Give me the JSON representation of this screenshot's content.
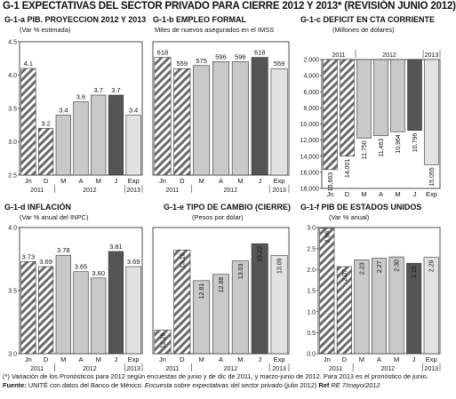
{
  "title": "G-1 EXPECTATIVAS DEL SECTOR PRIVADO PARA CIERRE 2012 Y 2013* (REVISIÓN JUNIO 2012)",
  "colors": {
    "hatched_bar": "#6a6a6a",
    "light_bar": "#c9c9c9",
    "dark_bar": "#555555",
    "exp_bar": "#e2e2e2",
    "chart_bg": "#ffffff"
  },
  "chart_data": [
    {
      "id": "g1a",
      "type": "bar",
      "title": "G-1-a PIB. PROYECCION 2012 Y 2013",
      "subtitle": "(Var % estimada)",
      "categories": [
        "Jn",
        "D",
        "M",
        "A",
        "M",
        "J",
        "Exp"
      ],
      "values": [
        4.1,
        3.2,
        3.4,
        3.6,
        3.7,
        3.7,
        3.4
      ],
      "value_labels": [
        "4.1",
        "3.2",
        "3.4",
        "3.6",
        "3.7",
        "3.7",
        "3.4"
      ],
      "styles": [
        "hatch",
        "hatch",
        "light",
        "light",
        "light",
        "dark",
        "exp"
      ],
      "ylim": [
        2.5,
        4.5
      ],
      "yticks": [
        "2.5",
        "3.0",
        "3.5",
        "4.0",
        "4.5"
      ],
      "axis_position": "left",
      "label_rotation": "none",
      "year_groups": [
        {
          "label": "2011",
          "span": [
            0,
            1
          ]
        },
        {
          "label": "2012",
          "span": [
            2,
            5
          ]
        },
        {
          "label": "2013",
          "span": [
            6,
            6
          ]
        }
      ]
    },
    {
      "id": "g1b",
      "type": "bar",
      "title": "G-1-b EMPLEO FORMAL",
      "subtitle": "Miles de nuevos asegurados en el IMSS",
      "categories": [
        "Jn",
        "D",
        "M",
        "A",
        "M",
        "J",
        "Exp"
      ],
      "values": [
        618,
        559,
        575,
        596,
        596,
        618,
        559
      ],
      "value_labels": [
        "618",
        "559",
        "575",
        "596",
        "596",
        "618",
        "559"
      ],
      "styles": [
        "hatch",
        "hatch",
        "light",
        "light",
        "light",
        "dark",
        "exp"
      ],
      "ylim": [
        0,
        700
      ],
      "yticks": [],
      "axis_position": "none",
      "label_rotation": "none",
      "year_groups": [
        {
          "label": "2011",
          "span": [
            0,
            1
          ]
        },
        {
          "label": "2012",
          "span": [
            2,
            5
          ]
        },
        {
          "label": "2013",
          "span": [
            6,
            6
          ]
        }
      ]
    },
    {
      "id": "g1c",
      "type": "bar",
      "title": "G-1-c DEFICIT EN CTA CORRIENTE",
      "subtitle": "(Millones de dólares)",
      "categories": [
        "Jn",
        "D",
        "M",
        "A",
        "M",
        "J",
        "Exp"
      ],
      "values": [
        15663,
        14001,
        11750,
        11463,
        10964,
        10796,
        15055
      ],
      "value_labels": [
        "15,663",
        "14,001",
        "11,750",
        "11,463",
        "10,964",
        "10,796",
        "15,055"
      ],
      "styles": [
        "hatch",
        "hatch",
        "light",
        "light",
        "light",
        "dark",
        "exp"
      ],
      "ylim": [
        2000,
        18000
      ],
      "yticks": [
        "2,000",
        "4,000",
        "6,000",
        "8,000",
        "10,000",
        "12,000",
        "14,000",
        "16,000",
        "18,000"
      ],
      "axis_position": "left",
      "orientation": "top-down",
      "label_rotation": "vertical",
      "year_groups": [
        {
          "label": "2011",
          "span": [
            0,
            1
          ]
        },
        {
          "label": "2012",
          "span": [
            2,
            5
          ]
        },
        {
          "label": "2013",
          "span": [
            6,
            6
          ]
        }
      ]
    },
    {
      "id": "g1d",
      "type": "bar",
      "title": "G-1-d INFLACIÓN",
      "subtitle": "(Var % anual del INPC)",
      "categories": [
        "Jn",
        "D",
        "M",
        "A",
        "M",
        "J",
        "Exp"
      ],
      "values": [
        3.73,
        3.69,
        3.78,
        3.65,
        3.6,
        3.81,
        3.69
      ],
      "value_labels": [
        "3.73",
        "3.69",
        "3.78",
        "3.65",
        "3.60",
        "3.81",
        "3.69"
      ],
      "styles": [
        "hatch",
        "hatch",
        "light",
        "light",
        "light",
        "dark",
        "exp"
      ],
      "ylim": [
        3.0,
        4.0
      ],
      "yticks": [
        "3.0",
        "3.5",
        "4.0"
      ],
      "axis_position": "left",
      "label_rotation": "none",
      "year_groups": [
        {
          "label": "2011",
          "span": [
            0,
            1
          ]
        },
        {
          "label": "2012",
          "span": [
            2,
            5
          ]
        },
        {
          "label": "2013",
          "span": [
            6,
            6
          ]
        }
      ]
    },
    {
      "id": "g1e",
      "type": "bar",
      "title": "G-1-e TIPO DE CAMBIO (CIERRE)",
      "subtitle": "(Pesos por dólar)",
      "categories": [
        "Jn",
        "D",
        "M",
        "A",
        "M",
        "J",
        "Exp"
      ],
      "values": [
        12.26,
        13.15,
        12.81,
        12.88,
        13.03,
        13.22,
        13.09
      ],
      "value_labels": [
        "12.26",
        "13.15",
        "12.81",
        "12.88",
        "13.03",
        "13.22",
        "13.09"
      ],
      "styles": [
        "hatch",
        "hatch",
        "light",
        "light",
        "light",
        "dark",
        "exp"
      ],
      "ylim": [
        12.0,
        13.4
      ],
      "yticks": [],
      "axis_position": "none",
      "label_rotation": "vertical",
      "year_groups": [
        {
          "label": "2011",
          "span": [
            0,
            1
          ]
        },
        {
          "label": "2012",
          "span": [
            2,
            5
          ]
        },
        {
          "label": "2013",
          "span": [
            6,
            6
          ]
        }
      ]
    },
    {
      "id": "g1f",
      "type": "bar",
      "title": "G-1-f PIB DE ESTADOS UNIDOS",
      "subtitle": "(Var % anual)",
      "categories": [
        "Jn",
        "D",
        "M",
        "A",
        "M",
        "J",
        "Exp"
      ],
      "values": [
        2.98,
        2.07,
        2.23,
        2.27,
        2.3,
        2.15,
        2.29
      ],
      "value_labels": [
        "2.98",
        "2.07",
        "2.23",
        "2.27",
        "2.30",
        "2.15",
        "2.29"
      ],
      "styles": [
        "hatch",
        "hatch",
        "light",
        "light",
        "light",
        "dark",
        "exp"
      ],
      "ylim": [
        0.0,
        3.0
      ],
      "yticks": [
        "0.0",
        "0.5",
        "1.0",
        "1.5",
        "2.0",
        "2.5",
        "3.0"
      ],
      "axis_position": "left",
      "label_rotation": "vertical",
      "year_groups": [
        {
          "label": "2011",
          "span": [
            0,
            1
          ]
        },
        {
          "label": "2012",
          "span": [
            2,
            5
          ]
        },
        {
          "label": "2013",
          "span": [
            6,
            6
          ]
        }
      ]
    }
  ],
  "footer": {
    "note": "(*) Variación de los Pronósticos para 2012 según encuestas de junio y de dic de 2011, y marzo-junio de 2012. Para 2013 es el pronóstico de junio.",
    "source_label": "Fuente:",
    "source_text": "UNITÉ con datos del Banco de México.",
    "source_italic": "Encuesta sobre expectativas del sector privado",
    "source_tail": "(julio 2012)",
    "ref_label": "Ref",
    "ref_text": "RE 7/mayo/2012"
  }
}
